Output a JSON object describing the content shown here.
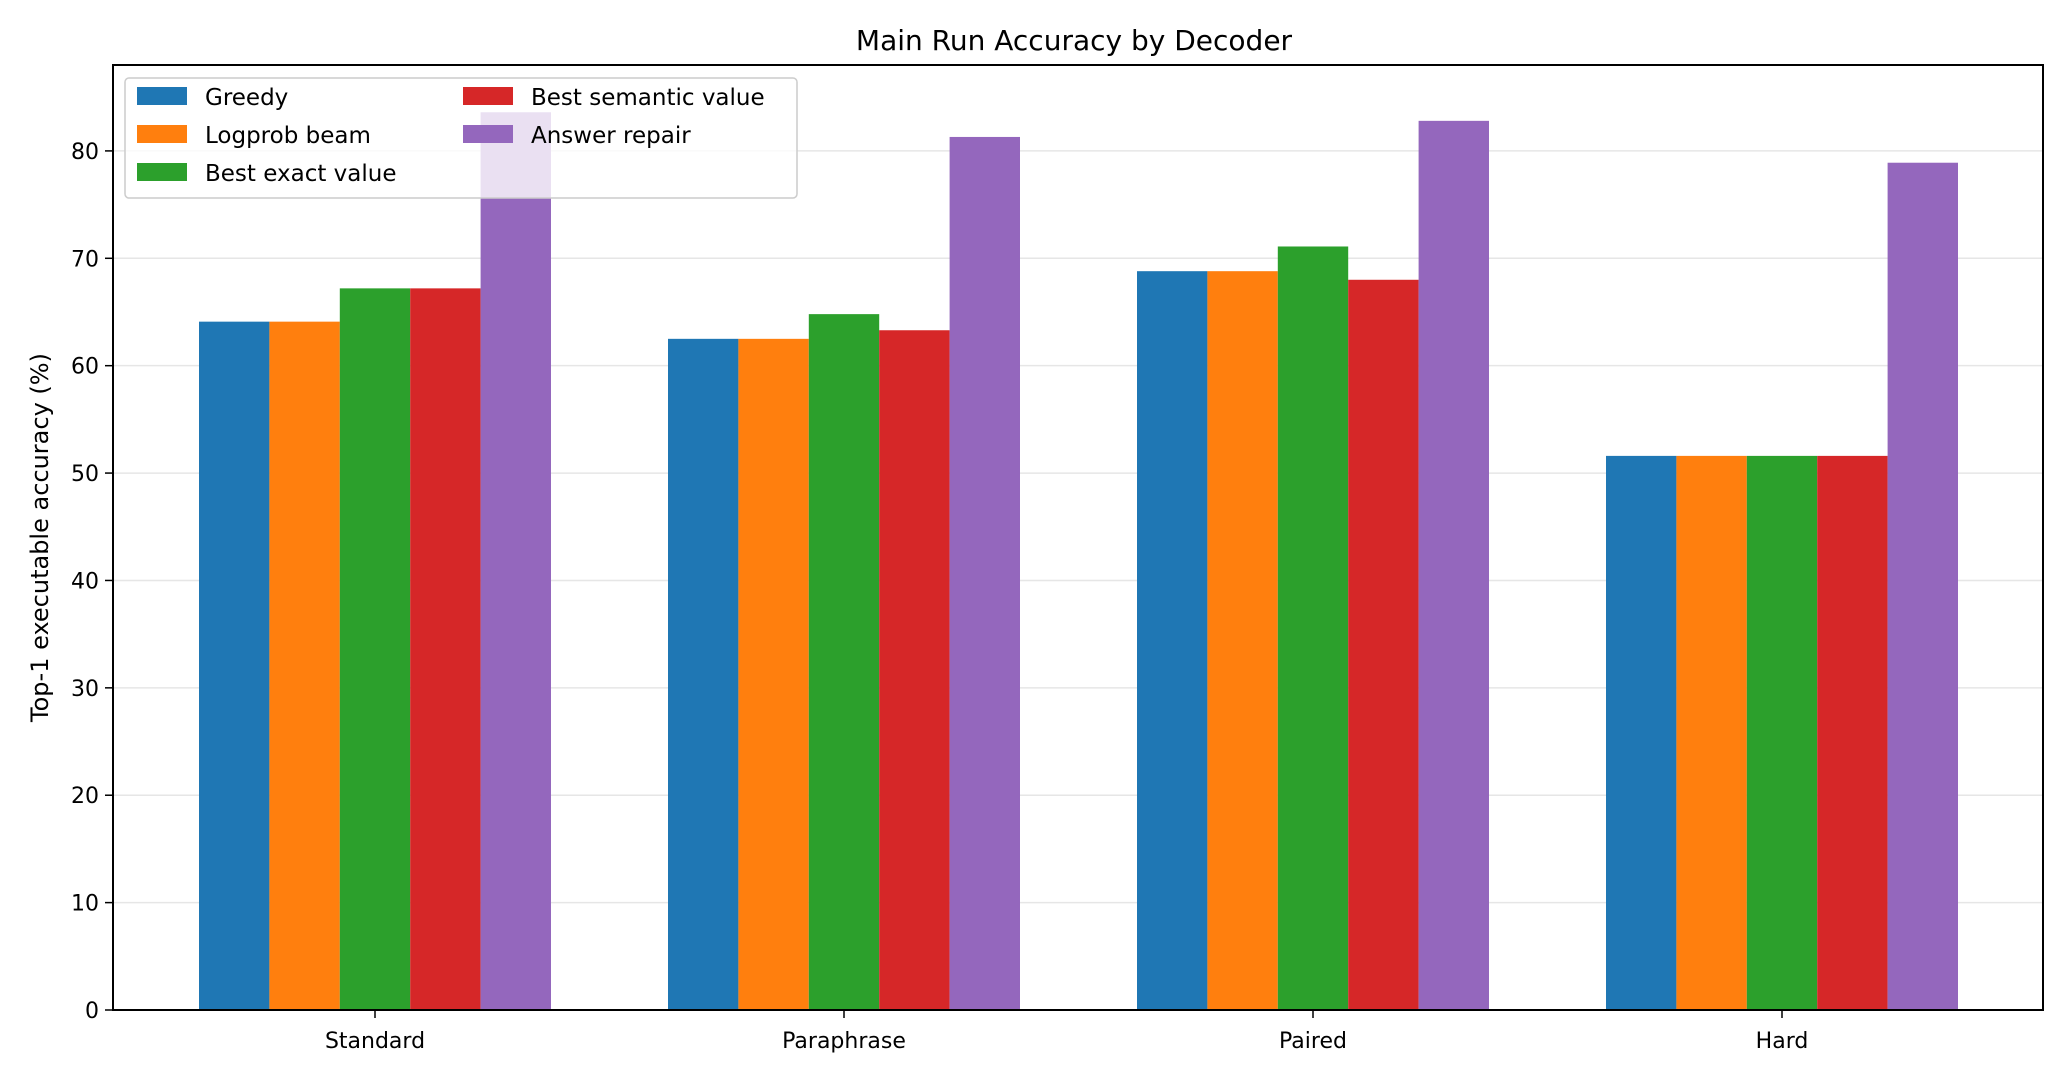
{
  "chart_data": {
    "type": "bar",
    "title": "Main Run Accuracy by Decoder",
    "xlabel": "",
    "ylabel": "Top-1 executable accuracy (%)",
    "categories": [
      "Standard",
      "Paraphrase",
      "Paired",
      "Hard"
    ],
    "ylim": [
      0,
      88
    ],
    "yticks": [
      0,
      10,
      20,
      30,
      40,
      50,
      60,
      70,
      80
    ],
    "grid": "horizontal",
    "legend_position": "top-left",
    "series": [
      {
        "name": "Greedy",
        "color": "#1f77b4",
        "values": [
          64.1,
          62.5,
          68.8,
          51.6
        ]
      },
      {
        "name": "Logprob beam",
        "color": "#ff7f0e",
        "values": [
          64.1,
          62.5,
          68.8,
          51.6
        ]
      },
      {
        "name": "Best exact value",
        "color": "#2ca02c",
        "values": [
          67.2,
          64.8,
          71.1,
          51.6
        ]
      },
      {
        "name": "Best semantic value",
        "color": "#d62728",
        "values": [
          67.2,
          63.3,
          68.0,
          51.6
        ]
      },
      {
        "name": "Answer repair",
        "color": "#9467bd",
        "values": [
          83.6,
          81.3,
          82.8,
          78.9
        ]
      }
    ]
  }
}
